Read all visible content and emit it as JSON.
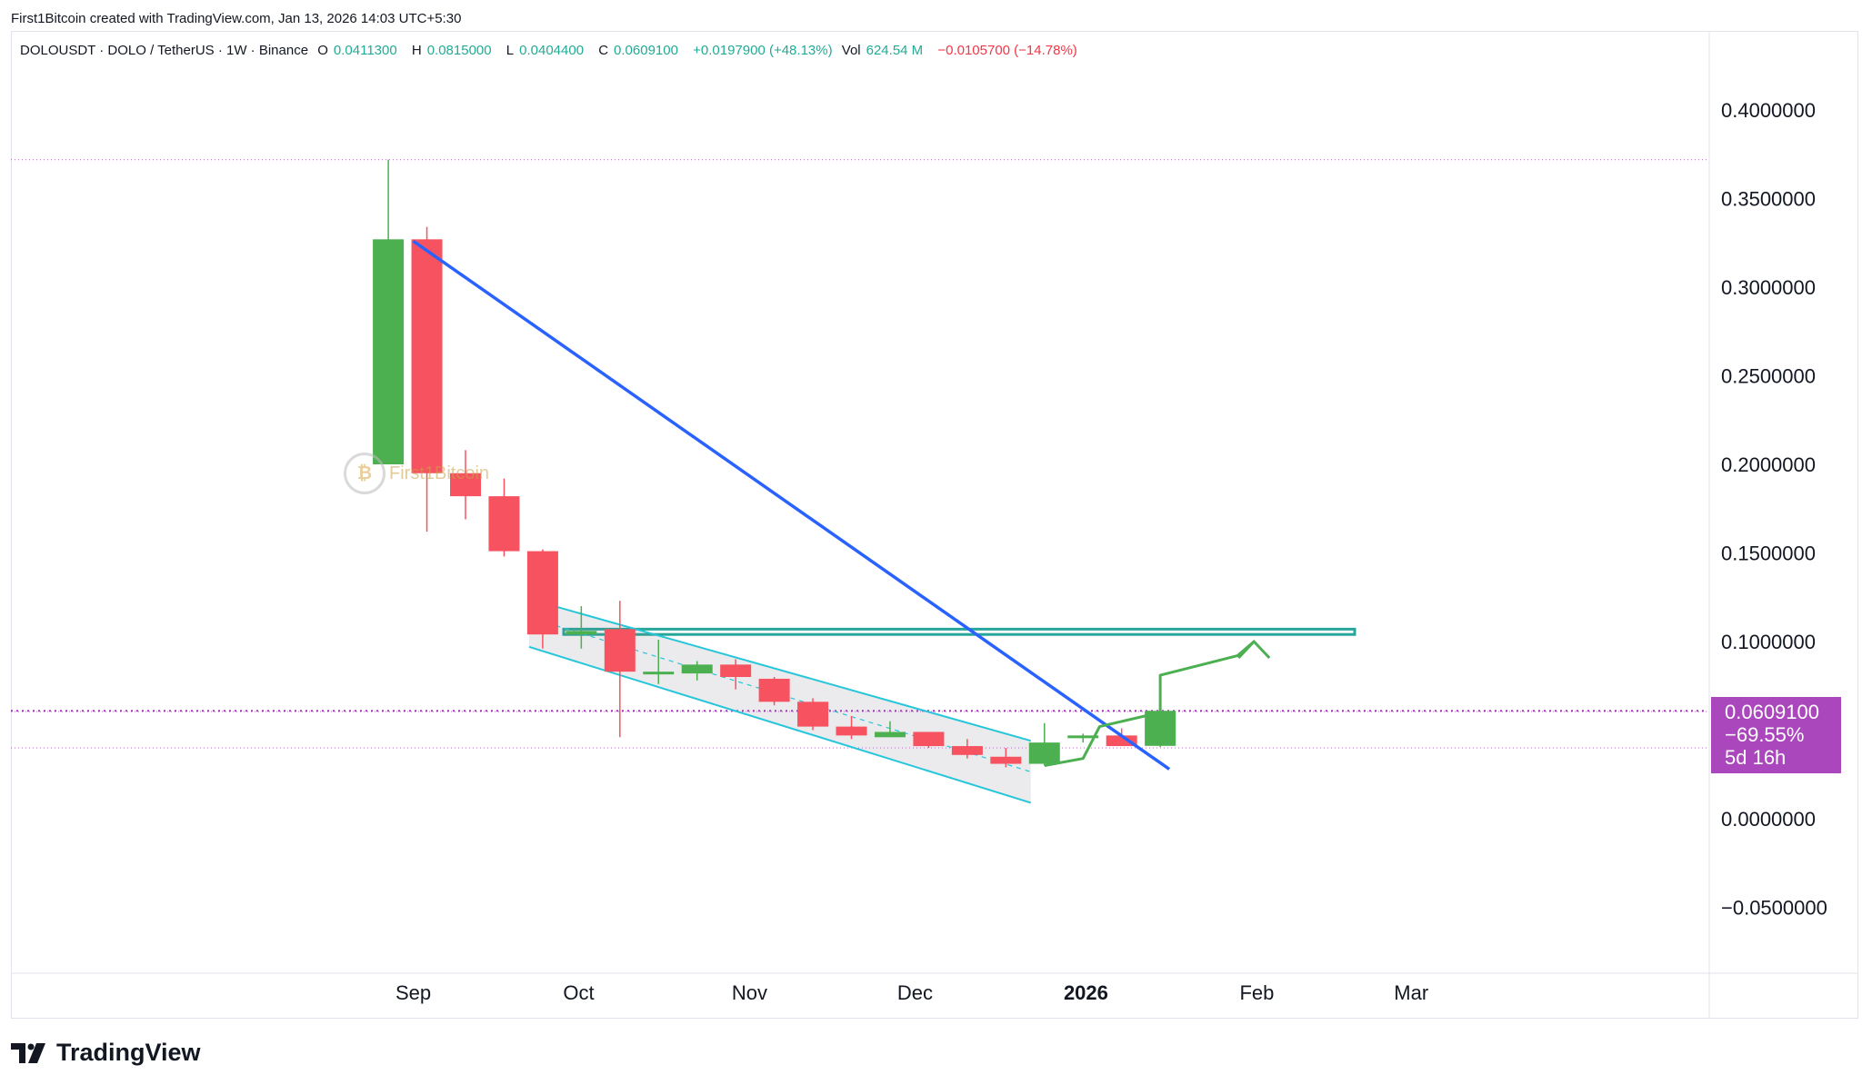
{
  "header": {
    "credit": "First1Bitcoin created with TradingView.com, Jan 13, 2026 14:03 UTC+5:30"
  },
  "legend": {
    "symbol": "DOLOUSDT · DOLO / TetherUS · 1W · Binance",
    "open_key": "O",
    "open": "0.0411300",
    "high_key": "H",
    "high": "0.0815000",
    "low_key": "L",
    "low": "0.0404400",
    "close_key": "C",
    "close": "0.0609100",
    "change": "+0.0197900 (+48.13%)",
    "vol_key": "Vol",
    "vol": "624.54 M",
    "vol_change": "−0.0105700 (−14.78%)"
  },
  "price_label": {
    "price": "0.0609100",
    "change": "−69.55%",
    "countdown": "5d 16h",
    "color": "#ab47bc"
  },
  "watermark": {
    "text": "First1Bitcoin"
  },
  "footer": {
    "brand": "TradingView"
  },
  "colors": {
    "up": "#4caf50",
    "down": "#f7525f",
    "trendline": "#2962ff",
    "channel": "#26c6da",
    "resistance": "#26a69a",
    "projection": "#4caf50",
    "level_line": "#9c27b0"
  },
  "chart_data": {
    "type": "candlestick",
    "title": "",
    "xlabel": "",
    "ylabel": "",
    "ylim": [
      -0.09,
      0.45
    ],
    "y_ticks": [
      "0.4000000",
      "0.3500000",
      "0.3000000",
      "0.2500000",
      "0.2000000",
      "0.1500000",
      "0.1000000",
      "0.0000000",
      "−0.0500000"
    ],
    "x_ticks": [
      "Sep",
      "Oct",
      "Nov",
      "Dec",
      "2026",
      "Feb",
      "Mar"
    ],
    "candles": [
      {
        "week": "2025-08-25",
        "o": 0.2,
        "h": 0.372,
        "l": 0.2,
        "c": 0.327
      },
      {
        "week": "2025-09-01",
        "o": 0.327,
        "h": 0.334,
        "l": 0.162,
        "c": 0.195
      },
      {
        "week": "2025-09-08",
        "o": 0.195,
        "h": 0.208,
        "l": 0.169,
        "c": 0.182
      },
      {
        "week": "2025-09-15",
        "o": 0.182,
        "h": 0.192,
        "l": 0.148,
        "c": 0.151
      },
      {
        "week": "2025-09-22",
        "o": 0.151,
        "h": 0.152,
        "l": 0.096,
        "c": 0.104
      },
      {
        "week": "2025-09-29",
        "o": 0.104,
        "h": 0.12,
        "l": 0.096,
        "c": 0.106
      },
      {
        "week": "2025-10-06",
        "o": 0.107,
        "h": 0.123,
        "l": 0.046,
        "c": 0.083
      },
      {
        "week": "2025-10-13",
        "o": 0.083,
        "h": 0.101,
        "l": 0.076,
        "c": 0.083
      },
      {
        "week": "2025-10-20",
        "o": 0.082,
        "h": 0.089,
        "l": 0.078,
        "c": 0.087
      },
      {
        "week": "2025-10-27",
        "o": 0.087,
        "h": 0.09,
        "l": 0.073,
        "c": 0.08
      },
      {
        "week": "2025-11-03",
        "o": 0.079,
        "h": 0.08,
        "l": 0.064,
        "c": 0.066
      },
      {
        "week": "2025-11-10",
        "o": 0.066,
        "h": 0.068,
        "l": 0.05,
        "c": 0.052
      },
      {
        "week": "2025-11-17",
        "o": 0.052,
        "h": 0.058,
        "l": 0.045,
        "c": 0.047
      },
      {
        "week": "2025-11-24",
        "o": 0.046,
        "h": 0.055,
        "l": 0.046,
        "c": 0.049
      },
      {
        "week": "2025-12-01",
        "o": 0.049,
        "h": 0.049,
        "l": 0.04,
        "c": 0.041
      },
      {
        "week": "2025-12-08",
        "o": 0.041,
        "h": 0.045,
        "l": 0.034,
        "c": 0.036
      },
      {
        "week": "2025-12-15",
        "o": 0.035,
        "h": 0.04,
        "l": 0.029,
        "c": 0.031
      },
      {
        "week": "2025-12-22",
        "o": 0.031,
        "h": 0.054,
        "l": 0.03,
        "c": 0.043
      },
      {
        "week": "2025-12-29",
        "o": 0.046,
        "h": 0.048,
        "l": 0.043,
        "c": 0.047
      },
      {
        "week": "2026-01-05",
        "o": 0.047,
        "h": 0.051,
        "l": 0.041,
        "c": 0.041
      },
      {
        "week": "2026-01-12",
        "o": 0.04113,
        "h": 0.0815,
        "l": 0.04044,
        "c": 0.06091
      }
    ],
    "horizontal_levels": [
      0.372,
      0.06091,
      0.0605,
      0.04
    ],
    "resistance_zone": [
      0.104,
      0.107
    ],
    "trendline": [
      [
        "2025-09-01",
        0.326
      ],
      [
        "2026-01-12",
        0.028
      ]
    ],
    "falling_channel": {
      "upper": [
        [
          "2025-09-22",
          0.124
        ],
        [
          "2025-12-22",
          0.044
        ]
      ],
      "lower": [
        [
          "2025-09-22",
          0.097
        ],
        [
          "2025-12-22",
          0.009
        ]
      ]
    },
    "projection_path": [
      [
        "2025-12-22",
        0.03
      ],
      [
        "2025-12-29",
        0.034
      ],
      [
        "2026-01-01",
        0.052
      ],
      [
        "2026-01-12",
        0.06
      ],
      [
        "2026-01-12",
        0.081
      ],
      [
        "2026-01-26",
        0.092
      ],
      [
        "2026-01-29",
        0.1
      ]
    ]
  }
}
